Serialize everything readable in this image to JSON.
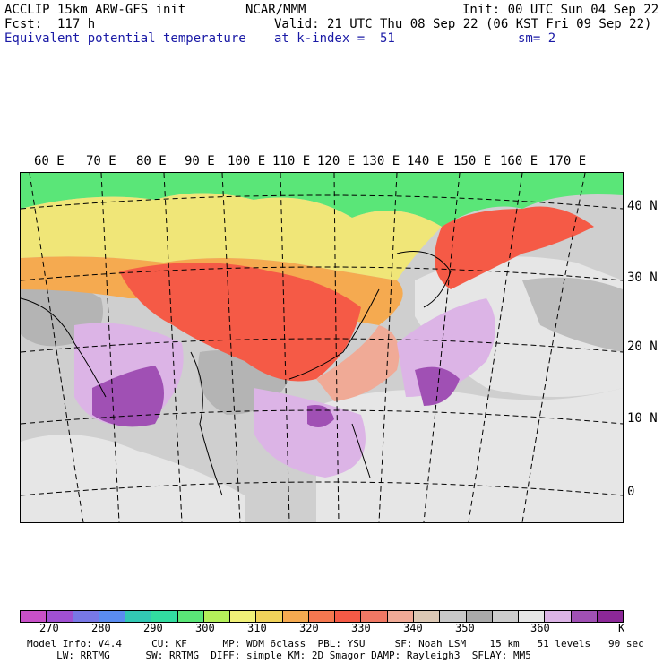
{
  "header": {
    "model": "ACCLIP 15km ARW-GFS init",
    "org": "NCAR/MMM",
    "init": "Init: 00 UTC Sun 04 Sep 22",
    "fcst": "Fcst:  117 h",
    "valid": "Valid: 21 UTC Thu 08 Sep 22 (06 KST Fri 09 Sep 22)",
    "field": "Equivalent potential temperature",
    "level": "at k-index =  51",
    "smooth": "sm= 2"
  },
  "lon_labels": [
    "60 E",
    "70 E",
    "80 E",
    "90 E",
    "100 E",
    "110 E",
    "120 E",
    "130 E",
    "140 E",
    "150 E",
    "160 E",
    "170 E"
  ],
  "lat_labels": [
    "40 N",
    "30 N",
    "20 N",
    "10 N",
    "0"
  ],
  "colorbar": {
    "colors": [
      "#c850c8",
      "#a050d2",
      "#7878e6",
      "#5a8cf0",
      "#32c8b4",
      "#32dca0",
      "#5ae678",
      "#b4f05a",
      "#f0f078",
      "#f0d25a",
      "#f5aa50",
      "#f57850",
      "#f55a46",
      "#f07864",
      "#f0aa96",
      "#dcc8b4",
      "#c8c8c8",
      "#aaaaaa",
      "#cccccc",
      "#e6e6e6",
      "#dcb4e6",
      "#a050b4",
      "#8c2898"
    ],
    "ticks": [
      "270",
      "280",
      "290",
      "300",
      "310",
      "320",
      "330",
      "340",
      "350",
      "360"
    ],
    "unit": "K"
  },
  "footer": {
    "line1": "Model Info: V4.4     CU: KF      MP: WDM 6class  PBL: YSU     SF: Noah LSM    15 km   51 levels   90 sec",
    "line2": "     LW: RRTMG      SW: RRTMG  DIFF: simple KM: 2D Smagor DAMP: Rayleigh3  SFLAY: MM5"
  },
  "map_regions": {
    "north_band": "#5ae678",
    "yellow_band": "#f0e678",
    "orange": "#f5aa50",
    "red": "#f55a46",
    "salmon": "#f0aa96",
    "gray": "#b4b4b4",
    "light": "#e6e6e6",
    "lavender": "#dcb4e6",
    "purple": "#a050b4"
  }
}
